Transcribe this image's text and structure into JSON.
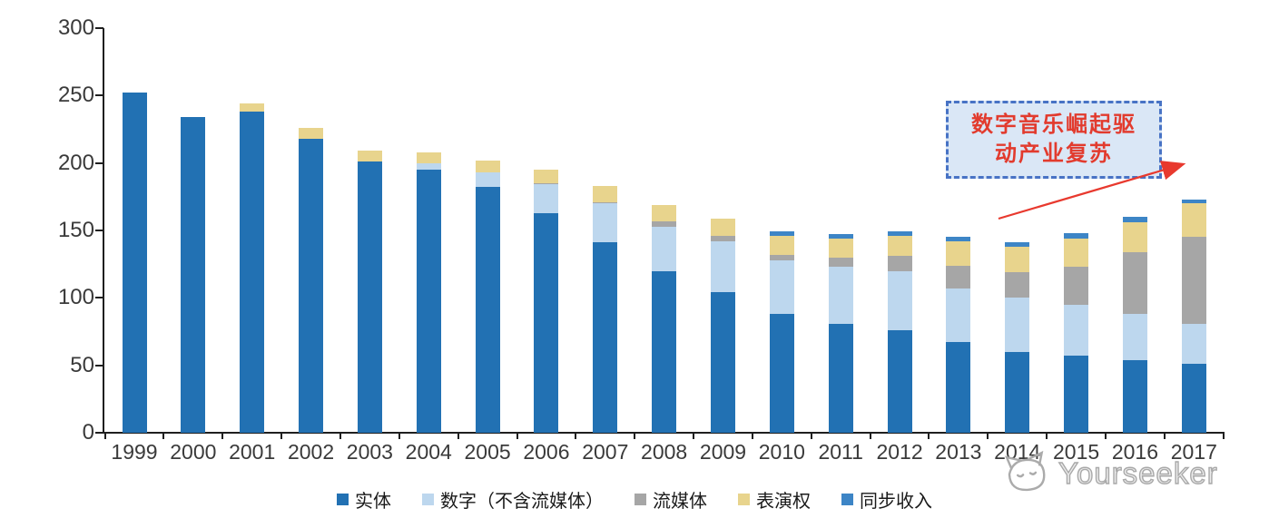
{
  "chart_data": {
    "type": "bar",
    "stacked": true,
    "title": "",
    "xlabel": "",
    "ylabel": "",
    "ylim": [
      0,
      300
    ],
    "yticks": [
      0,
      50,
      100,
      150,
      200,
      250,
      300
    ],
    "grid": false,
    "legend_position": "bottom",
    "categories": [
      "1999",
      "2000",
      "2001",
      "2002",
      "2003",
      "2004",
      "2005",
      "2006",
      "2007",
      "2008",
      "2009",
      "2010",
      "2011",
      "2012",
      "2013",
      "2014",
      "2015",
      "2016",
      "2017"
    ],
    "series": [
      {
        "name": "实体",
        "color": "#2271B3",
        "values": [
          252,
          234,
          238,
          218,
          201,
          195,
          182,
          163,
          141,
          120,
          104,
          88,
          81,
          76,
          67,
          60,
          57,
          54,
          51
        ]
      },
      {
        "name": "数字（不含流媒体）",
        "color": "#BDD7EE",
        "values": [
          0,
          0,
          0,
          0,
          0,
          5,
          11,
          21,
          29,
          33,
          38,
          40,
          42,
          44,
          40,
          40,
          38,
          34,
          30
        ]
      },
      {
        "name": "流媒体",
        "color": "#A6A6A6",
        "values": [
          0,
          0,
          0,
          0,
          0,
          0,
          0,
          1,
          1,
          4,
          4,
          4,
          7,
          11,
          17,
          19,
          28,
          46,
          64
        ]
      },
      {
        "name": "表演权",
        "color": "#E8D48D",
        "values": [
          0,
          0,
          6,
          8,
          8,
          8,
          9,
          10,
          12,
          12,
          13,
          14,
          14,
          15,
          18,
          19,
          21,
          22,
          25
        ]
      },
      {
        "name": "同步收入",
        "color": "#3D85C6",
        "values": [
          0,
          0,
          0,
          0,
          0,
          0,
          0,
          0,
          0,
          0,
          0,
          3,
          3,
          3,
          3,
          3,
          4,
          4,
          3
        ]
      }
    ]
  },
  "annotation": {
    "line1": "数字音乐崛起驱",
    "line2": "动产业复苏",
    "box_fill": "#DAE7F6",
    "box_border": "#4873C5",
    "text_color": "#E23B2E",
    "arrow_color": "#E8392E"
  },
  "watermark": {
    "text": "Yourseeker"
  }
}
